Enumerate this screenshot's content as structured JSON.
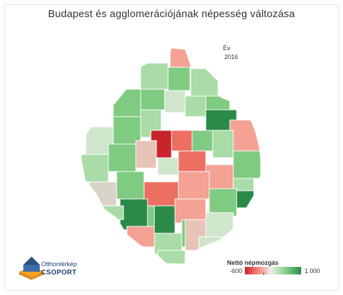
{
  "title": "Budapest és agglomerációjának népesség változása",
  "filter": {
    "label": "Év",
    "value": "2016"
  },
  "legend": {
    "title": "Nettó népmozgás",
    "min_label": "-600",
    "max_label": "1 000",
    "min_value": -600,
    "max_value": 1000
  },
  "logo": {
    "line1": "Otthontérkép",
    "line2": "CSOPORT"
  },
  "colors": {
    "strong_red": "#c9232b",
    "light_red": "#f1847b",
    "neutral": "#eeeeee",
    "light_green": "#a9dca7",
    "dark_green": "#2a8a47"
  }
}
